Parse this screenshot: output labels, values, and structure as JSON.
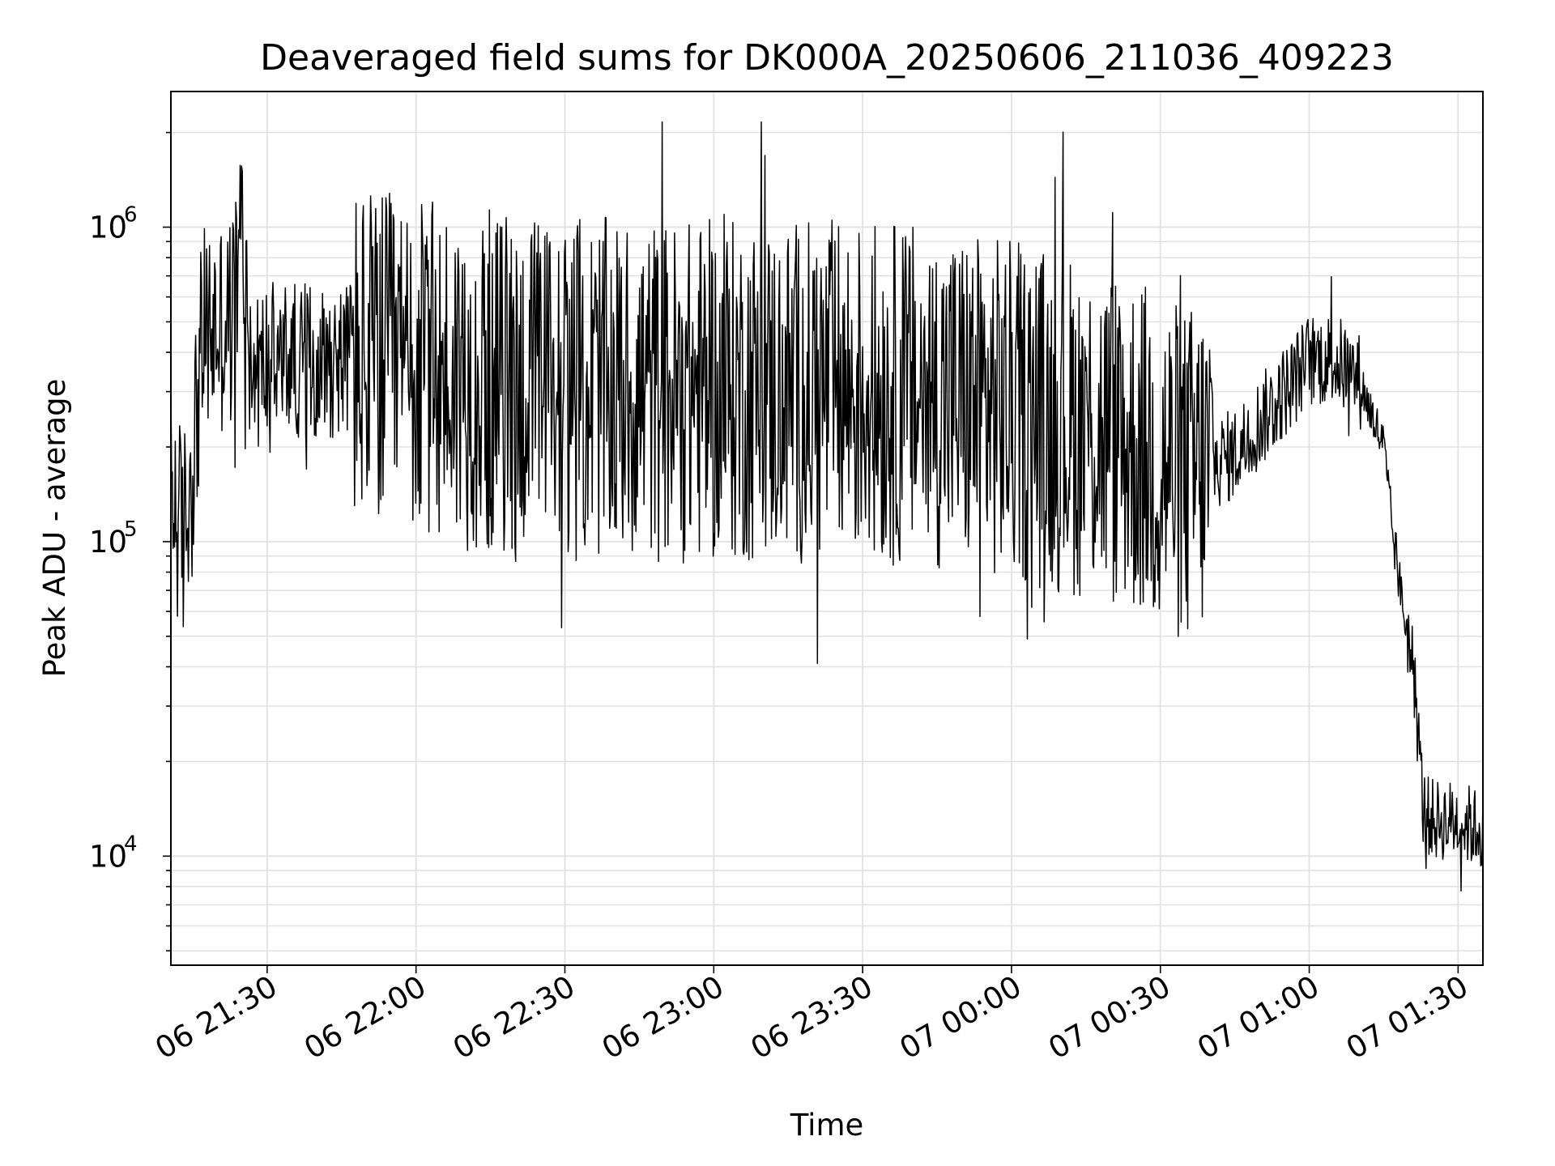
{
  "chart_data": {
    "type": "line",
    "title": "Deaveraged field sums for DK000A_20250606_211036_409223",
    "xlabel": "Time",
    "ylabel": "Peak ADU - average",
    "yscale": "log",
    "grid": true,
    "x_ticks": [
      "06 21:30",
      "06 22:00",
      "06 22:30",
      "06 23:00",
      "06 23:30",
      "07 00:00",
      "07 00:30",
      "07 01:00",
      "07 01:30"
    ],
    "y_ticks": [
      {
        "value": 10000,
        "base": "10",
        "exp": "4"
      },
      {
        "value": 100000,
        "base": "10",
        "exp": "5"
      },
      {
        "value": 1000000,
        "base": "10",
        "exp": "6"
      }
    ],
    "xlim": [
      "2025-06-06 21:10:36",
      "2025-06-07 01:35:00"
    ],
    "ylim": [
      4500,
      2700000
    ],
    "line_color": "#000000",
    "series": [
      {
        "x": [
          "2025-06-06 21:10:36",
          "2025-06-06 21:13:00",
          "2025-06-06 21:15:00",
          "2025-06-06 21:17:00",
          "2025-06-06 21:20:00",
          "2025-06-06 21:23:00",
          "2025-06-06 21:25:00",
          "2025-06-06 21:27:00",
          "2025-06-06 21:30:00",
          "2025-06-06 21:40:00",
          "2025-06-06 21:50:00",
          "2025-06-06 22:00:00",
          "2025-06-06 22:15:00",
          "2025-06-06 22:30:00",
          "2025-06-06 22:45:00",
          "2025-06-06 23:00:00",
          "2025-06-06 23:15:00",
          "2025-06-06 23:30:00",
          "2025-06-06 23:45:00",
          "2025-06-07 00:00:00",
          "2025-06-07 00:15:00",
          "2025-06-07 00:25:00",
          "2025-06-07 00:35:00",
          "2025-06-07 00:45:00",
          "2025-06-07 00:55:00",
          "2025-06-07 01:00:00",
          "2025-06-07 01:05:00",
          "2025-06-07 01:10:00",
          "2025-06-07 01:15:00",
          "2025-06-07 01:17:00",
          "2025-06-07 01:19:00",
          "2025-06-07 01:21:00",
          "2025-06-07 01:23:00",
          "2025-06-07 01:25:00",
          "2025-06-07 01:30:00",
          "2025-06-07 01:35:00"
        ],
        "values": [
          150000,
          100000,
          180000,
          450000,
          480000,
          500000,
          1000000,
          330000,
          380000,
          380000,
          380000,
          350000,
          320000,
          310000,
          300000,
          300000,
          300000,
          300000,
          290000,
          260000,
          230000,
          200000,
          160000,
          190000,
          300000,
          380000,
          380000,
          330000,
          200000,
          100000,
          60000,
          40000,
          14000,
          13000,
          13000,
          12000
        ]
      }
    ]
  }
}
